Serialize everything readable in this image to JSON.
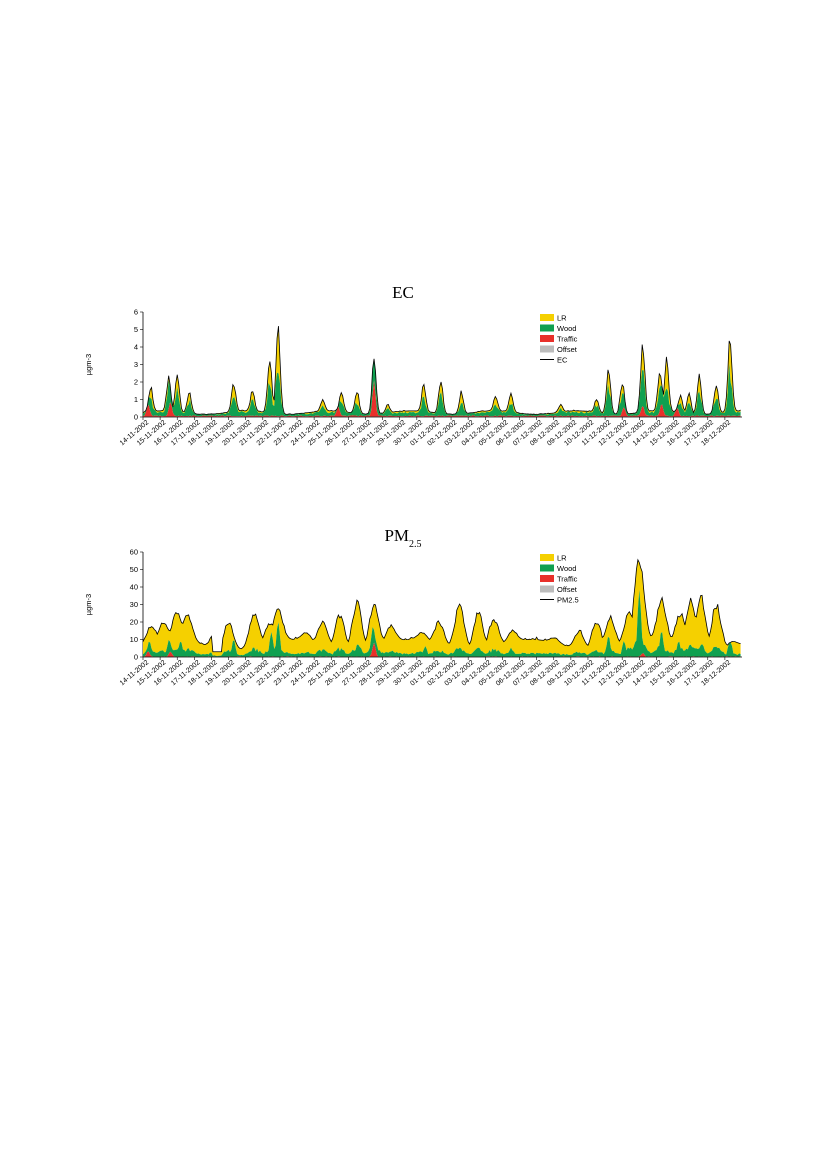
{
  "chart_data": [
    {
      "type": "area",
      "title": "EC",
      "title_subscript": "",
      "ylabel": "µgm-3",
      "ylim": [
        0,
        6
      ],
      "yticks": [
        "0",
        "1",
        "2",
        "3",
        "4",
        "5",
        "6"
      ],
      "stacked": true,
      "legend_placement": "top-right",
      "legend": [
        {
          "name": "LR",
          "color": "#f5d000",
          "kind": "area"
        },
        {
          "name": "Wood",
          "color": "#10a050",
          "kind": "area"
        },
        {
          "name": "Traffic",
          "color": "#e8302a",
          "kind": "area"
        },
        {
          "name": "Offset",
          "color": "#bcbcbc",
          "kind": "area"
        },
        {
          "name": "EC",
          "color": "#000000",
          "kind": "line"
        }
      ],
      "x_dates": [
        "14-11-2002",
        "15-11-2002",
        "16-11-2002",
        "17-11-2002",
        "18-11-2002",
        "19-11-2002",
        "20-11-2002",
        "21-11-2002",
        "22-11-2002",
        "23-11-2002",
        "24-11-2002",
        "25-11-2002",
        "26-11-2002",
        "27-11-2002",
        "28-11-2002",
        "29-11-2002",
        "30-11-2002",
        "01-12-2002",
        "02-12-2002",
        "03-12-2002",
        "04-12-2002",
        "05-12-2002",
        "06-12-2002",
        "07-12-2002",
        "08-12-2002",
        "09-12-2002",
        "10-12-2002",
        "11-12-2002",
        "12-12-2002",
        "13-12-2002",
        "14-12-2002",
        "15-12-2002",
        "16-12-2002",
        "17-12-2002",
        "18-12-2002"
      ],
      "total_peaks": [
        {
          "day": 0.45,
          "v": 1.7
        },
        {
          "day": 1.5,
          "v": 2.2
        },
        {
          "day": 2.0,
          "v": 2.4
        },
        {
          "day": 2.7,
          "v": 1.4
        },
        {
          "day": 5.3,
          "v": 1.9
        },
        {
          "day": 6.4,
          "v": 1.5
        },
        {
          "day": 7.4,
          "v": 3.4
        },
        {
          "day": 7.9,
          "v": 5.2
        },
        {
          "day": 10.5,
          "v": 1.0
        },
        {
          "day": 11.6,
          "v": 1.4
        },
        {
          "day": 12.5,
          "v": 1.5
        },
        {
          "day": 13.5,
          "v": 3.3
        },
        {
          "day": 14.3,
          "v": 0.7
        },
        {
          "day": 16.4,
          "v": 1.8
        },
        {
          "day": 17.4,
          "v": 2.1
        },
        {
          "day": 18.6,
          "v": 1.4
        },
        {
          "day": 20.6,
          "v": 1.2
        },
        {
          "day": 21.5,
          "v": 1.3
        },
        {
          "day": 24.4,
          "v": 0.7
        },
        {
          "day": 26.5,
          "v": 1.0
        },
        {
          "day": 27.2,
          "v": 2.6
        },
        {
          "day": 28.0,
          "v": 2.0
        },
        {
          "day": 29.2,
          "v": 4.0
        },
        {
          "day": 30.2,
          "v": 2.7
        },
        {
          "day": 30.6,
          "v": 3.3
        },
        {
          "day": 31.4,
          "v": 1.2
        },
        {
          "day": 31.9,
          "v": 1.3
        },
        {
          "day": 32.5,
          "v": 2.3
        },
        {
          "day": 33.5,
          "v": 1.9
        },
        {
          "day": 34.3,
          "v": 4.4
        }
      ],
      "traffic_peaks": [
        {
          "day": 0.3,
          "v": 0.7
        },
        {
          "day": 1.6,
          "v": 0.8
        },
        {
          "day": 11.4,
          "v": 0.6
        },
        {
          "day": 13.5,
          "v": 2.0
        },
        {
          "day": 28.1,
          "v": 0.5
        },
        {
          "day": 29.2,
          "v": 0.6
        },
        {
          "day": 30.3,
          "v": 0.7
        },
        {
          "day": 31.2,
          "v": 0.5
        }
      ]
    },
    {
      "type": "area",
      "title": "PM",
      "title_subscript": "2.5",
      "ylabel": "µgm-3",
      "ylim": [
        0,
        60
      ],
      "yticks": [
        "0",
        "10",
        "20",
        "30",
        "40",
        "50",
        "60"
      ],
      "stacked": true,
      "legend_placement": "top-right",
      "legend": [
        {
          "name": "LR",
          "color": "#f5d000",
          "kind": "area"
        },
        {
          "name": "Wood",
          "color": "#10a050",
          "kind": "area"
        },
        {
          "name": "Traffic",
          "color": "#e8302a",
          "kind": "area"
        },
        {
          "name": "Offset",
          "color": "#bcbcbc",
          "kind": "area"
        },
        {
          "name": "PM2.5",
          "color": "#000000",
          "kind": "line"
        }
      ],
      "x_dates": [
        "14-11-2002",
        "15-11-2002",
        "16-11-2002",
        "17-11-2002",
        "18-11-2002",
        "19-11-2002",
        "20-11-2002",
        "21-11-2002",
        "22-11-2002",
        "23-11-2002",
        "24-11-2002",
        "25-11-2002",
        "26-11-2002",
        "27-11-2002",
        "28-11-2002",
        "29-11-2002",
        "30-11-2002",
        "01-12-2002",
        "02-12-2002",
        "03-12-2002",
        "04-12-2002",
        "05-12-2002",
        "06-12-2002",
        "07-12-2002",
        "08-12-2002",
        "09-12-2002",
        "10-12-2002",
        "11-12-2002",
        "12-12-2002",
        "13-12-2002",
        "14-12-2002",
        "15-12-2002",
        "16-12-2002",
        "17-12-2002",
        "18-12-2002"
      ],
      "total_peaks": [
        {
          "day": 0.5,
          "v": 18
        },
        {
          "day": 1.2,
          "v": 20
        },
        {
          "day": 2.0,
          "v": 26
        },
        {
          "day": 2.6,
          "v": 24
        },
        {
          "day": 4.3,
          "v": 18
        },
        {
          "day": 5.0,
          "v": 20
        },
        {
          "day": 6.5,
          "v": 25
        },
        {
          "day": 7.4,
          "v": 19
        },
        {
          "day": 7.9,
          "v": 27
        },
        {
          "day": 9.5,
          "v": 14
        },
        {
          "day": 10.5,
          "v": 20
        },
        {
          "day": 11.5,
          "v": 24
        },
        {
          "day": 12.5,
          "v": 31
        },
        {
          "day": 13.5,
          "v": 30
        },
        {
          "day": 14.5,
          "v": 18
        },
        {
          "day": 16.3,
          "v": 14
        },
        {
          "day": 17.3,
          "v": 20
        },
        {
          "day": 18.5,
          "v": 30
        },
        {
          "day": 19.6,
          "v": 25
        },
        {
          "day": 20.5,
          "v": 22
        },
        {
          "day": 21.6,
          "v": 15
        },
        {
          "day": 24.0,
          "v": 11
        },
        {
          "day": 25.5,
          "v": 15
        },
        {
          "day": 26.5,
          "v": 20
        },
        {
          "day": 27.3,
          "v": 23
        },
        {
          "day": 28.4,
          "v": 25
        },
        {
          "day": 29.0,
          "v": 57
        },
        {
          "day": 30.3,
          "v": 32
        },
        {
          "day": 31.4,
          "v": 25
        },
        {
          "day": 32.0,
          "v": 33
        },
        {
          "day": 32.6,
          "v": 34
        },
        {
          "day": 33.5,
          "v": 30
        },
        {
          "day": 34.5,
          "v": 9
        }
      ],
      "wood_peaks": [
        {
          "day": 0.4,
          "v": 7
        },
        {
          "day": 1.5,
          "v": 8
        },
        {
          "day": 2.2,
          "v": 9
        },
        {
          "day": 5.3,
          "v": 10
        },
        {
          "day": 7.5,
          "v": 14
        },
        {
          "day": 7.9,
          "v": 20
        },
        {
          "day": 13.4,
          "v": 12
        },
        {
          "day": 16.5,
          "v": 6
        },
        {
          "day": 18.5,
          "v": 5
        },
        {
          "day": 21.5,
          "v": 5
        },
        {
          "day": 27.2,
          "v": 12
        },
        {
          "day": 28.1,
          "v": 9
        },
        {
          "day": 29.0,
          "v": 38
        },
        {
          "day": 30.3,
          "v": 15
        },
        {
          "day": 31.3,
          "v": 9
        },
        {
          "day": 34.3,
          "v": 12
        }
      ],
      "traffic_peaks": [
        {
          "day": 0.3,
          "v": 3
        },
        {
          "day": 1.6,
          "v": 3
        },
        {
          "day": 13.5,
          "v": 8
        },
        {
          "day": 29.2,
          "v": 2
        }
      ]
    }
  ]
}
